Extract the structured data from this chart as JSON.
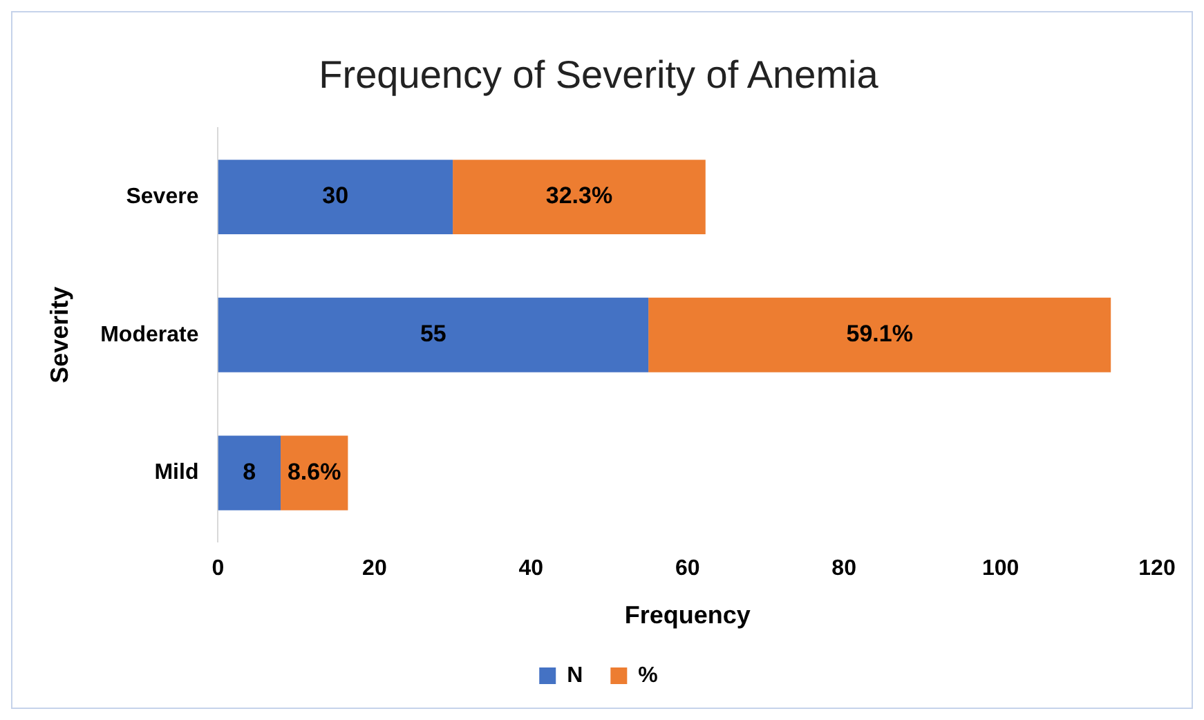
{
  "chart_data": {
    "type": "bar",
    "title": "Frequency of Severity of Anemia",
    "xlabel": "Frequency",
    "ylabel": "Severity",
    "categories": [
      "Severe",
      "Moderate",
      "Mild"
    ],
    "series": [
      {
        "name": "N",
        "color": "#4472c4",
        "values": [
          30,
          55,
          8
        ],
        "value_labels": [
          "30",
          "55",
          "8"
        ]
      },
      {
        "name": "%",
        "color": "#ed7d31",
        "values": [
          32.3,
          59.1,
          8.6
        ],
        "value_labels": [
          "32.3%",
          "59.1%",
          "8.6%"
        ]
      }
    ],
    "stacked": true,
    "orientation": "horizontal",
    "xlim": [
      0,
      120
    ],
    "xticks": [
      0,
      20,
      40,
      60,
      80,
      100,
      120
    ],
    "grid": false,
    "legend": "bottom"
  }
}
